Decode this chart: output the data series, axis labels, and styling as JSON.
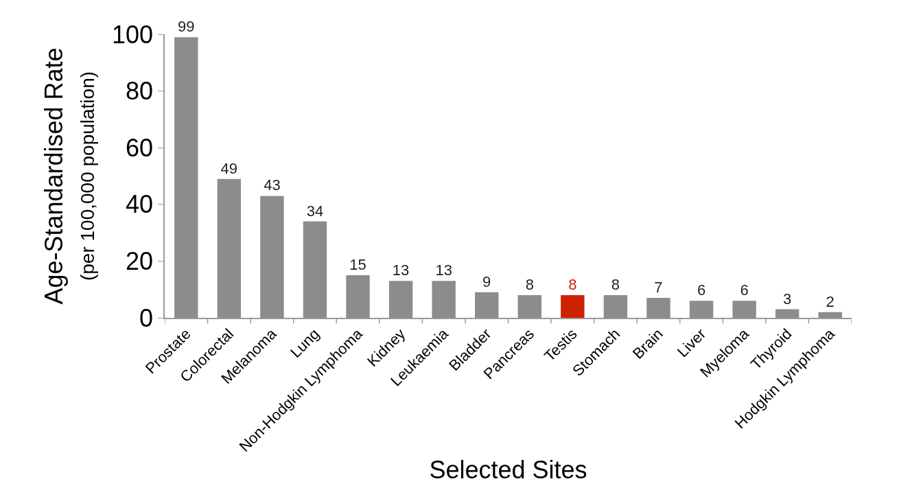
{
  "chart_data": {
    "type": "bar",
    "xlabel": "Selected Sites",
    "ylabel": "Age-Standardised Rate\n(per 100,000 population)",
    "categories": [
      "Prostate",
      "Colorectal",
      "Melanoma",
      "Lung",
      "Non-Hodgkin Lymphoma",
      "Kidney",
      "Leukaemia",
      "Bladder",
      "Pancreas",
      "Testis",
      "Stomach",
      "Brain",
      "Liver",
      "Myeloma",
      "Thyroid",
      "Hodgkin Lymphoma"
    ],
    "values": [
      99,
      49,
      43,
      34,
      15,
      13,
      13,
      9,
      8,
      8,
      8,
      7,
      6,
      6,
      3,
      2
    ],
    "colors": [
      "#8c8c8c",
      "#8c8c8c",
      "#8c8c8c",
      "#8c8c8c",
      "#8c8c8c",
      "#8c8c8c",
      "#8c8c8c",
      "#8c8c8c",
      "#8c8c8c",
      "#cc2200",
      "#8c8c8c",
      "#8c8c8c",
      "#8c8c8c",
      "#8c8c8c",
      "#8c8c8c",
      "#8c8c8c"
    ],
    "ylim": [
      0,
      100
    ],
    "yticks": [
      0,
      20,
      40,
      60,
      80,
      100
    ],
    "data_labels": true
  }
}
